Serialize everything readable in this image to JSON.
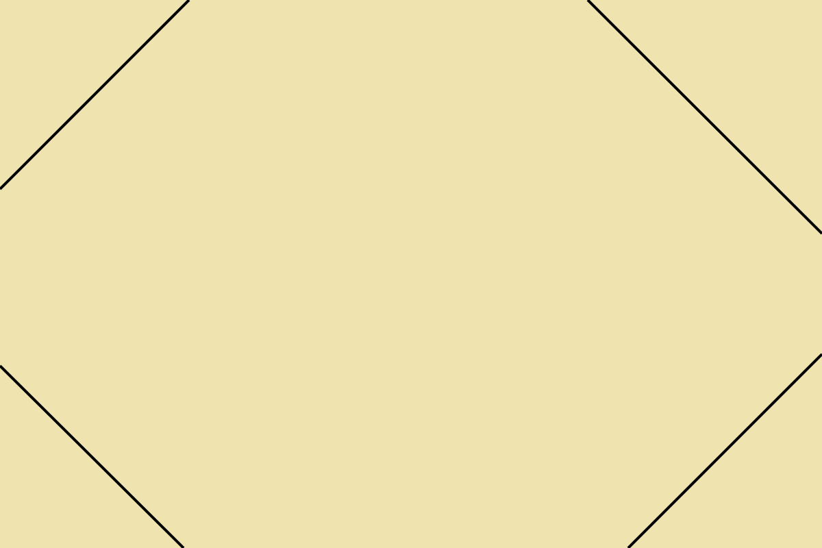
{
  "scene": {
    "background_color": "#EFE3B0",
    "line_color": "#000000"
  }
}
